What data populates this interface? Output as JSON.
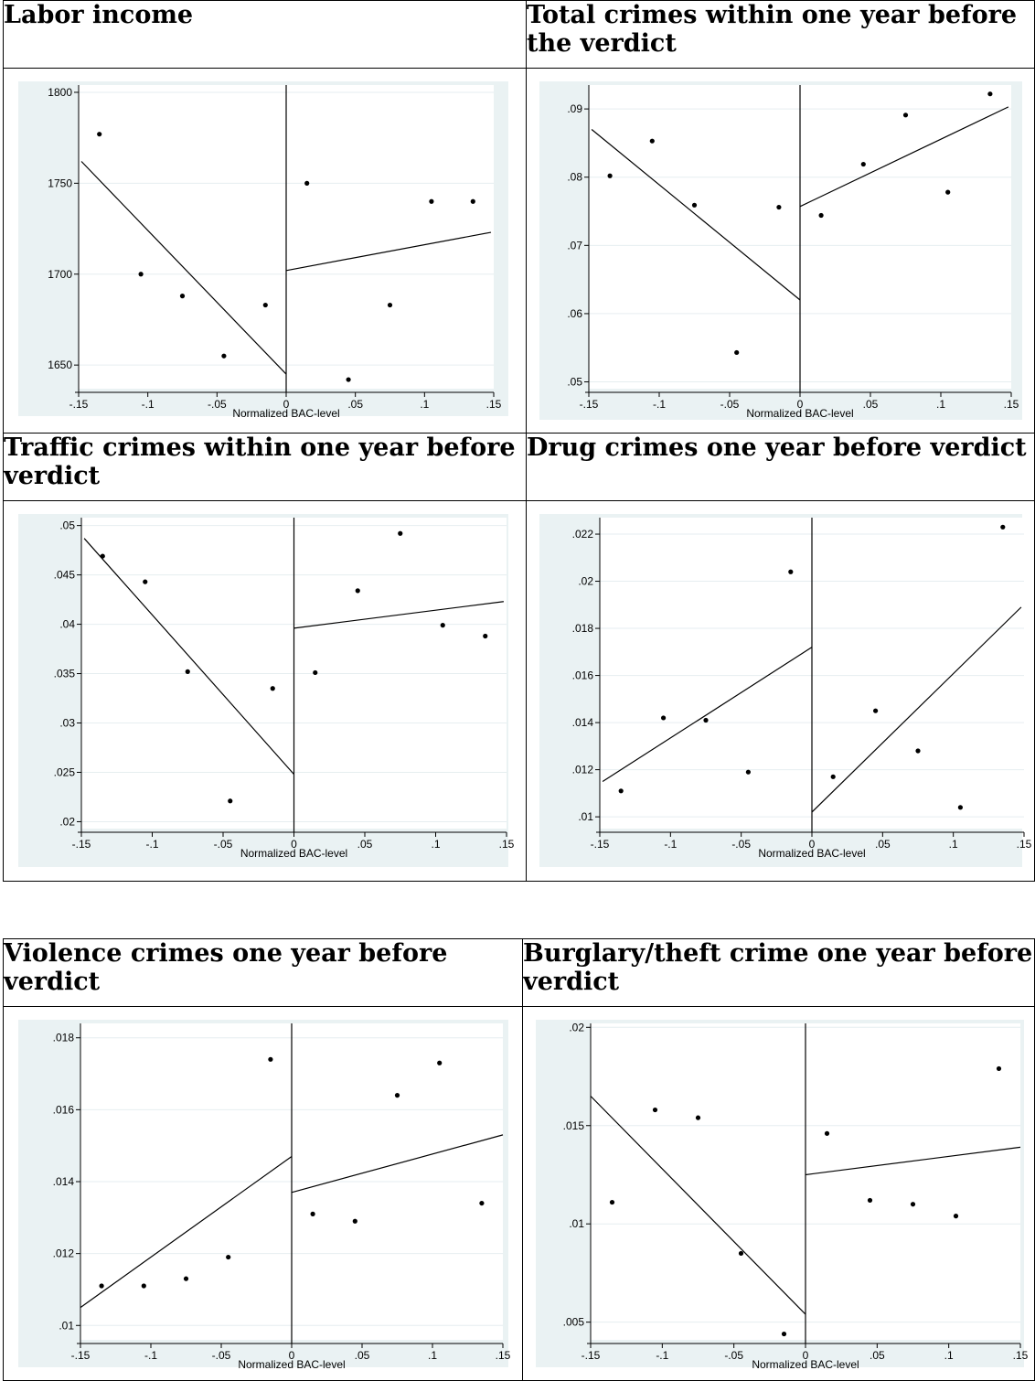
{
  "charts": [
    {
      "title": "Labor income",
      "chart_data": {
        "type": "scatter",
        "xlabel": "Normalized BAC-level",
        "xlim": [
          -0.15,
          0.15
        ],
        "xticks": [
          -0.15,
          -0.1,
          -0.05,
          0,
          0.05,
          0.1,
          0.15
        ],
        "xtick_labels": [
          "-.15",
          "-.1",
          "-.05",
          "0",
          ".05",
          ".1",
          ".15"
        ],
        "ylim": [
          1637,
          1804
        ],
        "yticks": [
          1650,
          1700,
          1750,
          1800
        ],
        "ytick_labels": [
          "1650",
          "1700",
          "1750",
          "1800"
        ],
        "points": {
          "x": [
            -0.135,
            -0.105,
            -0.075,
            -0.045,
            -0.015,
            0.015,
            0.045,
            0.075,
            0.105,
            0.135
          ],
          "y": [
            1777,
            1700,
            1688,
            1655,
            1683,
            1750,
            1642,
            1683,
            1740,
            1740
          ]
        },
        "fit_left": [
          [
            -0.148,
            1762
          ],
          [
            0,
            1645
          ]
        ],
        "fit_right": [
          [
            0,
            1702
          ],
          [
            0.148,
            1723
          ]
        ],
        "cutoff": 0,
        "grid": true
      }
    },
    {
      "title": "Total crimes within one year before the verdict",
      "chart_data": {
        "type": "scatter",
        "xlabel": "Normalized BAC-level",
        "xlim": [
          -0.15,
          0.15
        ],
        "xticks": [
          -0.15,
          -0.1,
          -0.05,
          0,
          0.05,
          0.1,
          0.15
        ],
        "xtick_labels": [
          "-.15",
          "-.1",
          "-.05",
          "0",
          ".05",
          ".1",
          ".15"
        ],
        "ylim": [
          0.049,
          0.0935
        ],
        "yticks": [
          0.05,
          0.06,
          0.07,
          0.08,
          0.09
        ],
        "ytick_labels": [
          ".05",
          ".06",
          ".07",
          ".08",
          ".09"
        ],
        "points": {
          "x": [
            -0.135,
            -0.105,
            -0.075,
            -0.045,
            -0.015,
            0.015,
            0.045,
            0.075,
            0.105,
            0.135
          ],
          "y": [
            0.0802,
            0.0853,
            0.0759,
            0.0543,
            0.0756,
            0.0744,
            0.0819,
            0.0891,
            0.0778,
            0.0922
          ]
        },
        "fit_left": [
          [
            -0.148,
            0.087
          ],
          [
            0,
            0.062
          ]
        ],
        "fit_right": [
          [
            0,
            0.0757
          ],
          [
            0.148,
            0.0903
          ]
        ],
        "cutoff": 0,
        "grid": true
      }
    },
    {
      "title": "Traffic crimes within one year before verdict",
      "chart_data": {
        "type": "scatter",
        "xlabel": "Normalized BAC-level",
        "xlim": [
          -0.15,
          0.15
        ],
        "xticks": [
          -0.15,
          -0.1,
          -0.05,
          0,
          0.05,
          0.1,
          0.15
        ],
        "xtick_labels": [
          "-.15",
          "-.1",
          "-.05",
          "0",
          ".05",
          ".1",
          ".15"
        ],
        "ylim": [
          0.0193,
          0.0508
        ],
        "yticks": [
          0.02,
          0.025,
          0.03,
          0.035,
          0.04,
          0.045,
          0.05
        ],
        "ytick_labels": [
          ".02",
          ".025",
          ".03",
          ".035",
          ".04",
          ".045",
          ".05"
        ],
        "points": {
          "x": [
            -0.135,
            -0.105,
            -0.075,
            -0.045,
            -0.015,
            0.015,
            0.045,
            0.075,
            0.105,
            0.135
          ],
          "y": [
            0.0469,
            0.0443,
            0.0352,
            0.0221,
            0.0335,
            0.0351,
            0.0434,
            0.0492,
            0.0399,
            0.0388
          ]
        },
        "fit_left": [
          [
            -0.148,
            0.0487
          ],
          [
            0,
            0.0248
          ]
        ],
        "fit_right": [
          [
            0,
            0.0396
          ],
          [
            0.148,
            0.0423
          ]
        ],
        "cutoff": 0,
        "grid": true
      }
    },
    {
      "title": "Drug crimes one year before verdict",
      "chart_data": {
        "type": "scatter",
        "xlabel": "Normalized BAC-level",
        "xlim": [
          -0.15,
          0.15
        ],
        "xticks": [
          -0.15,
          -0.1,
          -0.05,
          0,
          0.05,
          0.1,
          0.15
        ],
        "xtick_labels": [
          "-.15",
          "-.1",
          "-.05",
          "0",
          ".05",
          ".1",
          ".15"
        ],
        "ylim": [
          0.0095,
          0.0227
        ],
        "yticks": [
          0.01,
          0.012,
          0.014,
          0.016,
          0.018,
          0.02,
          0.022
        ],
        "ytick_labels": [
          ".01",
          ".012",
          ".014",
          ".016",
          ".018",
          ".02",
          ".022"
        ],
        "points": {
          "x": [
            -0.135,
            -0.105,
            -0.075,
            -0.045,
            -0.015,
            0.015,
            0.045,
            0.075,
            0.105,
            0.135
          ],
          "y": [
            0.0111,
            0.0142,
            0.0141,
            0.0119,
            0.0204,
            0.0117,
            0.0145,
            0.0128,
            0.0104,
            0.0223
          ]
        },
        "fit_left": [
          [
            -0.148,
            0.0115
          ],
          [
            0,
            0.0172
          ]
        ],
        "fit_right": [
          [
            0,
            0.0102
          ],
          [
            0.148,
            0.0189
          ]
        ],
        "cutoff": 0,
        "grid": true
      }
    },
    {
      "title": "Violence crimes one year before verdict",
      "chart_data": {
        "type": "scatter",
        "xlabel": "Normalized BAC-level",
        "xlim": [
          -0.15,
          0.15
        ],
        "xticks": [
          -0.15,
          -0.1,
          -0.05,
          0,
          0.05,
          0.1,
          0.15
        ],
        "xtick_labels": [
          "-.15",
          "-.1",
          "-.05",
          "0",
          ".05",
          ".1",
          ".15"
        ],
        "ylim": [
          0.0096,
          0.0184
        ],
        "yticks": [
          0.01,
          0.012,
          0.014,
          0.016,
          0.018
        ],
        "ytick_labels": [
          ".01",
          ".012",
          ".014",
          ".016",
          ".018"
        ],
        "points": {
          "x": [
            -0.135,
            -0.105,
            -0.075,
            -0.045,
            -0.015,
            0.015,
            0.045,
            0.075,
            0.105,
            0.135
          ],
          "y": [
            0.0111,
            0.0111,
            0.0113,
            0.0119,
            0.0174,
            0.0131,
            0.0129,
            0.0164,
            0.0173,
            0.0134
          ]
        },
        "fit_left": [
          [
            -0.15,
            0.0105
          ],
          [
            0,
            0.0147
          ]
        ],
        "fit_right": [
          [
            0,
            0.0137
          ],
          [
            0.15,
            0.0153
          ]
        ],
        "cutoff": 0,
        "grid": true
      }
    },
    {
      "title": "Burglary/theft crime one year before verdict",
      "chart_data": {
        "type": "scatter",
        "xlabel": "Normalized BAC-level",
        "xlim": [
          -0.15,
          0.15
        ],
        "xticks": [
          -0.15,
          -0.1,
          -0.05,
          0,
          0.05,
          0.1,
          0.15
        ],
        "xtick_labels": [
          "-.15",
          "-.1",
          "-.05",
          "0",
          ".05",
          ".1",
          ".15"
        ],
        "ylim": [
          0.0041,
          0.0202
        ],
        "yticks": [
          0.005,
          0.01,
          0.015,
          0.02
        ],
        "ytick_labels": [
          ".005",
          ".01",
          ".015",
          ".02"
        ],
        "points": {
          "x": [
            -0.135,
            -0.105,
            -0.075,
            -0.045,
            -0.015,
            0.015,
            0.045,
            0.075,
            0.105,
            0.135
          ],
          "y": [
            0.0111,
            0.0158,
            0.0154,
            0.0085,
            0.0044,
            0.0146,
            0.0112,
            0.011,
            0.0104,
            0.0179
          ]
        },
        "fit_left": [
          [
            -0.15,
            0.0165
          ],
          [
            0,
            0.0054
          ]
        ],
        "fit_right": [
          [
            0,
            0.0125
          ],
          [
            0.15,
            0.0139
          ]
        ],
        "cutoff": 0,
        "grid": true
      }
    }
  ]
}
